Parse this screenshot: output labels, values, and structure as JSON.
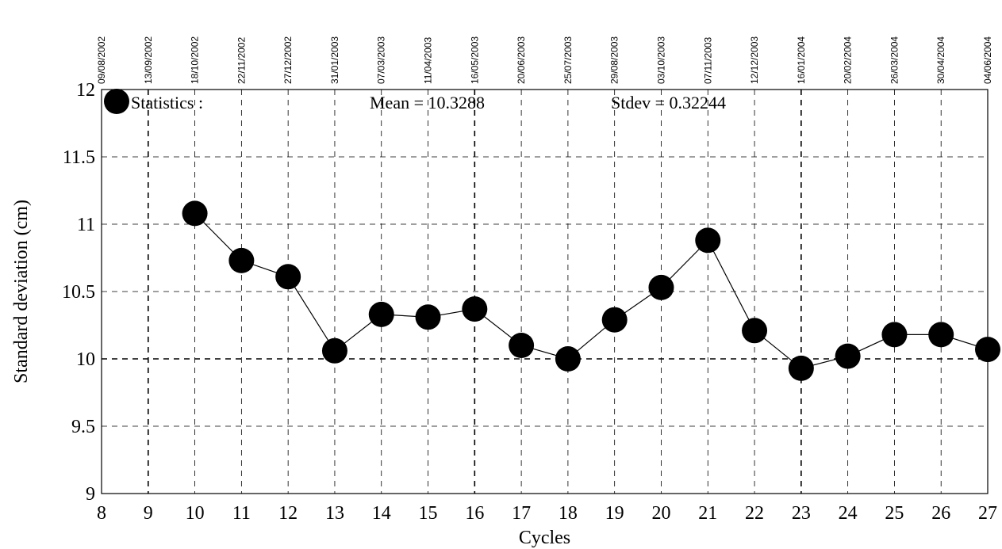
{
  "chart_data": {
    "type": "line",
    "xlabel": "Cycles",
    "ylabel": "Standard deviation (cm)",
    "xlim": [
      8,
      27
    ],
    "ylim": [
      9,
      12
    ],
    "xticks": [
      "8",
      "9",
      "10",
      "11",
      "12",
      "13",
      "14",
      "15",
      "16",
      "17",
      "18",
      "19",
      "20",
      "21",
      "22",
      "23",
      "24",
      "25",
      "26",
      "27"
    ],
    "yticks": [
      "9",
      "9.5",
      "10",
      "10.5",
      "11",
      "11.5",
      "12"
    ],
    "top_axis_dates": [
      "09/08/2002",
      "13/09/2002",
      "18/10/2002",
      "22/11/2002",
      "27/12/2002",
      "31/01/2003",
      "07/03/2003",
      "11/04/2003",
      "16/05/2003",
      "20/06/2003",
      "25/07/2003",
      "29/08/2003",
      "03/10/2003",
      "07/11/2003",
      "12/12/2003",
      "16/01/2004",
      "20/02/2004",
      "26/03/2004",
      "30/04/2004",
      "04/06/2004"
    ],
    "grid": true,
    "series": [
      {
        "x": [
          10,
          11,
          12,
          13,
          14,
          15,
          16,
          17,
          18,
          19,
          20,
          21,
          22,
          23,
          24,
          25,
          26,
          27
        ],
        "values": [
          11.08,
          10.73,
          10.61,
          10.06,
          10.33,
          10.31,
          10.37,
          10.1,
          10.0,
          10.29,
          10.53,
          10.88,
          10.21,
          9.93,
          10.02,
          10.18,
          10.18,
          10.07
        ]
      }
    ],
    "legend": {
      "label": "Statistics :",
      "mean_text": "Mean = 10.3288",
      "stdev_text": "Stdev = 0.32244"
    }
  }
}
